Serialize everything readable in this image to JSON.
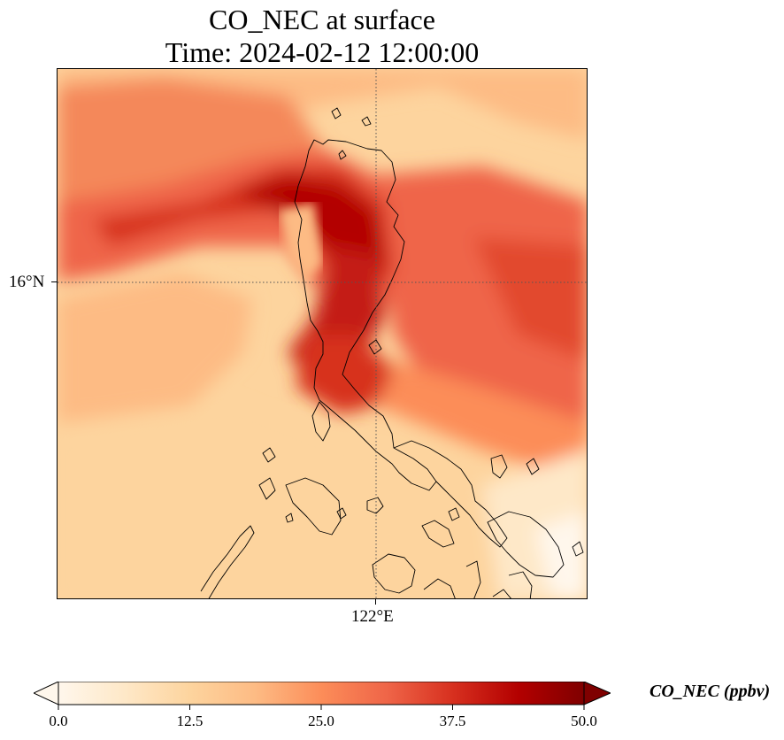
{
  "title": {
    "line1": "CO_NEC at surface",
    "line2": "Time: 2024-02-12 12:00:00"
  },
  "map": {
    "lat_gridline_label": "16°N",
    "lon_gridline_label": "122°E",
    "field_description": "CO concentration field",
    "gridline_style": "dotted"
  },
  "colorbar": {
    "label": "CO_NEC (ppbv)",
    "min": 0.0,
    "max": 50.0,
    "extend": "both",
    "colormap": "OrRd",
    "ticks": [
      "0.0",
      "12.5",
      "25.0",
      "37.5",
      "50.0"
    ],
    "tick_values": [
      0.0,
      12.5,
      25.0,
      37.5,
      50.0
    ],
    "colors": [
      "#fff7ec",
      "#fee8c8",
      "#fdd49e",
      "#fdbb84",
      "#fc8d59",
      "#ef6548",
      "#d7301f",
      "#b30000",
      "#7f0000"
    ]
  }
}
